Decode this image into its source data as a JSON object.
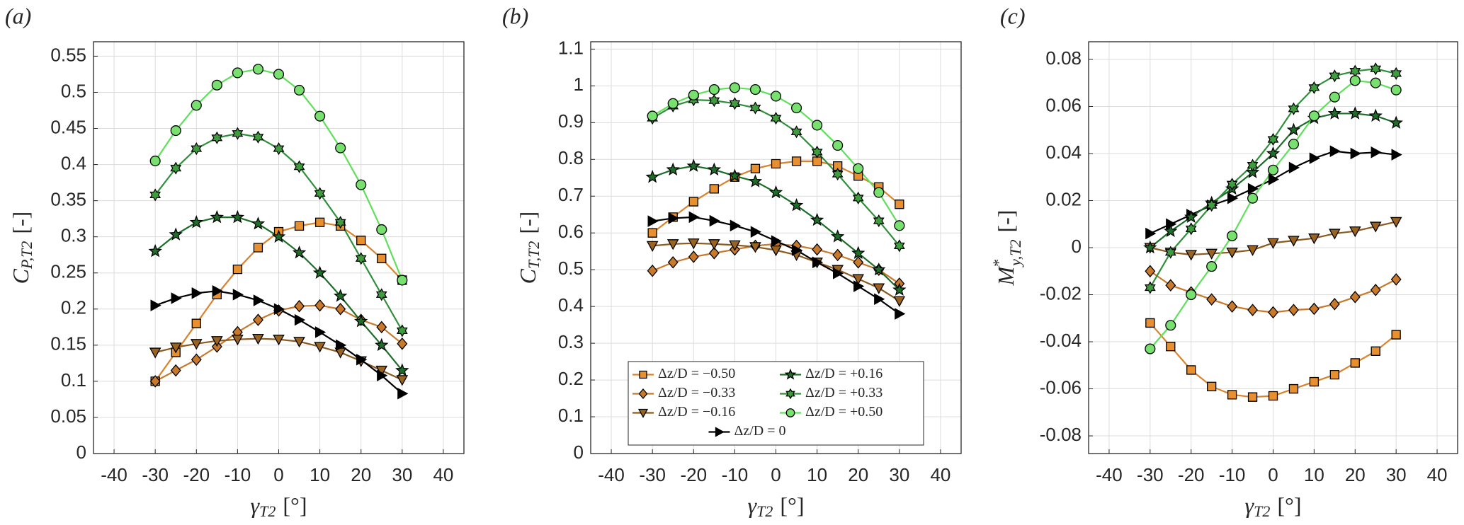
{
  "chart_data": [
    {
      "type": "line",
      "panel_label": "(a)",
      "xlabel": {
        "symbol": "γ",
        "subscript": "T2",
        "unit": "[°]"
      },
      "ylabel": {
        "symbol": "C",
        "subscript": "P,T2",
        "unit": "[-]"
      },
      "x": [
        -30,
        -25,
        -20,
        -15,
        -10,
        -5,
        0,
        5,
        10,
        15,
        20,
        25,
        30
      ],
      "xlim": [
        -45,
        45
      ],
      "xticks": [
        -40,
        -30,
        -20,
        -10,
        0,
        10,
        20,
        30,
        40
      ],
      "ylim": [
        0,
        0.57
      ],
      "yticks": [
        0,
        0.05,
        0.1,
        0.15,
        0.2,
        0.25,
        0.3,
        0.35,
        0.4,
        0.45,
        0.5,
        0.55
      ],
      "grid": true,
      "series": [
        {
          "color": "#d9822b",
          "marker": "square",
          "marker_color": "#e8902f",
          "values": [
            0.1,
            0.14,
            0.18,
            0.22,
            0.255,
            0.285,
            0.307,
            0.315,
            0.32,
            0.315,
            0.295,
            0.27,
            0.24
          ]
        },
        {
          "color": "#c8782a",
          "marker": "diamond",
          "marker_color": "#c87a2a",
          "values": [
            0.1,
            0.115,
            0.13,
            0.148,
            0.168,
            0.185,
            0.198,
            0.204,
            0.205,
            0.2,
            0.185,
            0.175,
            0.152
          ]
        },
        {
          "color": "#8a5a1e",
          "marker": "triangle-down",
          "marker_color": "#9a6320",
          "values": [
            0.14,
            0.147,
            0.152,
            0.156,
            0.158,
            0.159,
            0.158,
            0.155,
            0.148,
            0.14,
            0.128,
            0.115,
            0.102
          ]
        },
        {
          "color": "#000000",
          "marker": "triangle-right",
          "marker_color": "#000000",
          "values": [
            0.205,
            0.215,
            0.222,
            0.225,
            0.22,
            0.212,
            0.2,
            0.185,
            0.168,
            0.15,
            0.13,
            0.108,
            0.083
          ]
        },
        {
          "color": "#1b6e28",
          "marker": "star",
          "marker_color": "#1e6e2a",
          "values": [
            0.28,
            0.303,
            0.32,
            0.327,
            0.327,
            0.318,
            0.3,
            0.278,
            0.25,
            0.218,
            0.183,
            0.15,
            0.115
          ]
        },
        {
          "color": "#2f8f3a",
          "marker": "hexagram",
          "marker_color": "#3f9c3f",
          "values": [
            0.358,
            0.395,
            0.422,
            0.437,
            0.443,
            0.438,
            0.422,
            0.397,
            0.36,
            0.32,
            0.27,
            0.22,
            0.17
          ]
        },
        {
          "color": "#5fe05a",
          "marker": "circle",
          "marker_color": "#77e06e",
          "values": [
            0.405,
            0.447,
            0.482,
            0.51,
            0.527,
            0.532,
            0.525,
            0.503,
            0.467,
            0.423,
            0.372,
            0.31,
            0.24
          ]
        }
      ]
    },
    {
      "type": "line",
      "panel_label": "(b)",
      "xlabel": {
        "symbol": "γ",
        "subscript": "T2",
        "unit": "[°]"
      },
      "ylabel": {
        "symbol": "C",
        "subscript": "T,T2",
        "unit": "[-]"
      },
      "x": [
        -30,
        -25,
        -20,
        -15,
        -10,
        -5,
        0,
        5,
        10,
        15,
        20,
        25,
        30
      ],
      "xlim": [
        -45,
        45
      ],
      "xticks": [
        -40,
        -30,
        -20,
        -10,
        0,
        10,
        20,
        30,
        40
      ],
      "ylim": [
        0,
        1.12
      ],
      "yticks": [
        0,
        0.1,
        0.2,
        0.3,
        0.4,
        0.5,
        0.6,
        0.7,
        0.8,
        0.9,
        1,
        1.1
      ],
      "grid": true,
      "legend": "lower center",
      "series": [
        {
          "name": "Δz/D = −0.50",
          "color": "#d9822b",
          "marker": "square",
          "marker_color": "#e8902f",
          "values": [
            0.6,
            0.643,
            0.685,
            0.72,
            0.752,
            0.775,
            0.788,
            0.795,
            0.795,
            0.782,
            0.755,
            0.725,
            0.678
          ]
        },
        {
          "name": "Δz/D = −0.33",
          "color": "#c8782a",
          "marker": "diamond",
          "marker_color": "#c87a2a",
          "values": [
            0.497,
            0.52,
            0.535,
            0.545,
            0.555,
            0.565,
            0.57,
            0.565,
            0.555,
            0.54,
            0.52,
            0.5,
            0.462
          ]
        },
        {
          "name": "Δz/D = −0.16",
          "color": "#8a5a1e",
          "marker": "triangle-down",
          "marker_color": "#9a6320",
          "values": [
            0.565,
            0.57,
            0.572,
            0.57,
            0.567,
            0.562,
            0.553,
            0.54,
            0.52,
            0.5,
            0.475,
            0.45,
            0.415
          ]
        },
        {
          "name": "Δz/D = 0",
          "color": "#000000",
          "marker": "triangle-right",
          "marker_color": "#000000",
          "values": [
            0.632,
            0.64,
            0.643,
            0.633,
            0.62,
            0.603,
            0.578,
            0.553,
            0.52,
            0.49,
            0.455,
            0.42,
            0.38
          ]
        },
        {
          "name": "Δz/D = +0.16",
          "color": "#1b6e28",
          "marker": "star",
          "marker_color": "#1e6e2a",
          "values": [
            0.752,
            0.772,
            0.782,
            0.772,
            0.755,
            0.74,
            0.71,
            0.675,
            0.635,
            0.59,
            0.545,
            0.5,
            0.445
          ]
        },
        {
          "name": "Δz/D = +0.33",
          "color": "#2f8f3a",
          "marker": "hexagram",
          "marker_color": "#3f9c3f",
          "values": [
            0.912,
            0.945,
            0.962,
            0.96,
            0.952,
            0.94,
            0.912,
            0.875,
            0.82,
            0.76,
            0.695,
            0.633,
            0.565
          ]
        },
        {
          "name": "Δz/D = +0.50",
          "color": "#5fe05a",
          "marker": "circle",
          "marker_color": "#77e06e",
          "values": [
            0.918,
            0.952,
            0.975,
            0.99,
            0.995,
            0.99,
            0.972,
            0.94,
            0.893,
            0.838,
            0.775,
            0.71,
            0.62
          ]
        }
      ]
    },
    {
      "type": "line",
      "panel_label": "(c)",
      "xlabel": {
        "symbol": "γ",
        "subscript": "T2",
        "unit": "[°]"
      },
      "ylabel": {
        "symbol": "M",
        "superscript": "*",
        "subscript": "y,T2",
        "unit": "[-]"
      },
      "x": [
        -30,
        -25,
        -20,
        -15,
        -10,
        -5,
        0,
        5,
        10,
        15,
        20,
        25,
        30
      ],
      "xlim": [
        -45,
        45
      ],
      "xticks": [
        -40,
        -30,
        -20,
        -10,
        0,
        10,
        20,
        30,
        40
      ],
      "ylim": [
        -0.0875,
        0.0875
      ],
      "yticks": [
        -0.08,
        -0.06,
        -0.04,
        -0.02,
        0,
        0.02,
        0.04,
        0.06,
        0.08
      ],
      "grid": true,
      "series": [
        {
          "color": "#d9822b",
          "marker": "square",
          "marker_color": "#e8902f",
          "values": [
            -0.032,
            -0.042,
            -0.052,
            -0.059,
            -0.0625,
            -0.0635,
            -0.063,
            -0.06,
            -0.057,
            -0.054,
            -0.049,
            -0.044,
            -0.037
          ]
        },
        {
          "color": "#c8782a",
          "marker": "diamond",
          "marker_color": "#c87a2a",
          "values": [
            -0.01,
            -0.016,
            -0.019,
            -0.022,
            -0.025,
            -0.0265,
            -0.0275,
            -0.0265,
            -0.026,
            -0.024,
            -0.021,
            -0.018,
            -0.0135
          ]
        },
        {
          "color": "#8a5a1e",
          "marker": "triangle-down",
          "marker_color": "#9a6320",
          "values": [
            0.0,
            -0.002,
            -0.003,
            -0.0025,
            -0.002,
            -0.001,
            0.002,
            0.003,
            0.004,
            0.006,
            0.007,
            0.009,
            0.011
          ]
        },
        {
          "color": "#000000",
          "marker": "triangle-right",
          "marker_color": "#000000",
          "values": [
            0.006,
            0.01,
            0.014,
            0.018,
            0.021,
            0.025,
            0.029,
            0.034,
            0.038,
            0.041,
            0.04,
            0.0405,
            0.0395
          ]
        },
        {
          "color": "#1b6e28",
          "marker": "star",
          "marker_color": "#1e6e2a",
          "values": [
            0.0,
            0.007,
            0.013,
            0.019,
            0.025,
            0.032,
            0.04,
            0.05,
            0.055,
            0.057,
            0.057,
            0.056,
            0.053
          ]
        },
        {
          "color": "#2f8f3a",
          "marker": "hexagram",
          "marker_color": "#3f9c3f",
          "values": [
            -0.017,
            -0.002,
            0.008,
            0.018,
            0.027,
            0.035,
            0.046,
            0.059,
            0.068,
            0.073,
            0.075,
            0.076,
            0.074
          ]
        },
        {
          "color": "#5fe05a",
          "marker": "circle",
          "marker_color": "#77e06e",
          "values": [
            -0.043,
            -0.033,
            -0.02,
            -0.008,
            0.005,
            0.021,
            0.033,
            0.044,
            0.056,
            0.064,
            0.071,
            0.07,
            0.067
          ]
        }
      ]
    }
  ]
}
